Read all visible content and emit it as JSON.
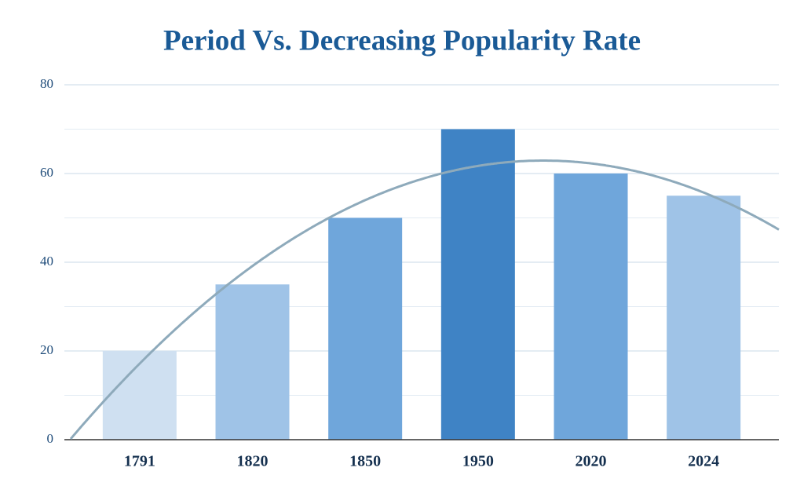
{
  "chart_data": {
    "type": "bar",
    "title": "Period Vs. Decreasing Popularity Rate",
    "categories": [
      "1791",
      "1820",
      "1850",
      "1950",
      "2020",
      "2024"
    ],
    "values": [
      20,
      35,
      50,
      70,
      60,
      55
    ],
    "colors": [
      "#cfe0f1",
      "#9fc3e7",
      "#6fa6db",
      "#3f83c5",
      "#6fa6db",
      "#9fc3e7"
    ],
    "ylim": [
      0,
      80
    ],
    "yticks": [
      0,
      20,
      40,
      60,
      80
    ],
    "grid": true,
    "trendline": "polynomial",
    "trendline_color": "#8eaabb"
  }
}
